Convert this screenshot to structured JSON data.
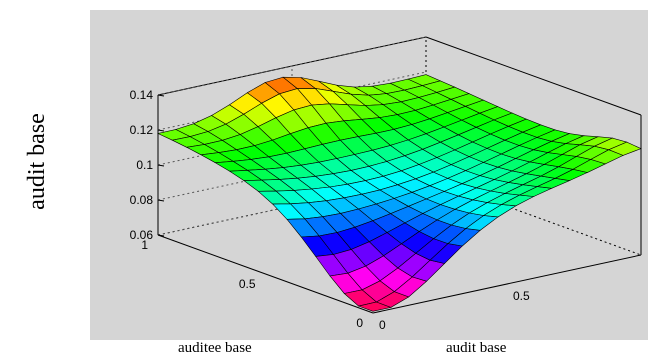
{
  "chart_data": {
    "type": "surface",
    "title": "",
    "xlabel": "auditee base",
    "ylabel": "audit base",
    "zlabel": "audit base",
    "z_ticks": [
      "0.06",
      "0.08",
      "0.1",
      "0.12",
      "0.14"
    ],
    "x_ticks": [
      "0",
      "0.5",
      "1"
    ],
    "y_ticks": [
      "0",
      "0.5"
    ],
    "zlim": [
      0.06,
      0.14
    ],
    "xlim": [
      0,
      1
    ],
    "ylim": [
      0,
      1
    ],
    "colormap": "hsv",
    "grid": true,
    "surface_samples": [
      {
        "auditee": 0,
        "audit": 0,
        "z": 0.065
      },
      {
        "auditee": 1,
        "audit": 0,
        "z": 0.122
      },
      {
        "auditee": 1,
        "audit": 1,
        "z": 0.12
      },
      {
        "auditee": 0,
        "audit": 1,
        "z": 0.12
      },
      {
        "auditee": 0.5,
        "audit": 0.5,
        "z": 0.09
      },
      {
        "auditee": 1,
        "audit": 0.5,
        "z": 0.14
      }
    ]
  }
}
